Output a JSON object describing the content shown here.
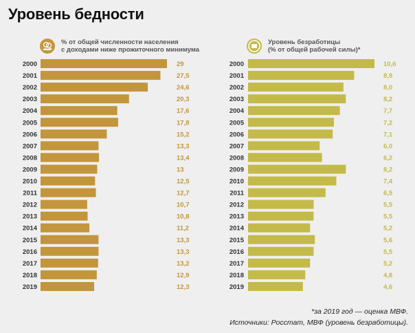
{
  "title": "Уровень бедности",
  "colors": {
    "poverty_bar": "#c3953c",
    "poverty_value": "#c3953c",
    "unemployment_bar": "#c4ba4a",
    "unemployment_value": "#c4ba4a",
    "year_label": "#333333"
  },
  "chart_data": [
    {
      "type": "bar",
      "orientation": "horizontal",
      "title": "% от общей численности населения с доходами ниже прожиточного минимума",
      "title_lines": [
        "% от общей численности населения",
        "с доходами ниже прожиточного минимума"
      ],
      "icon": "coins-hand-icon",
      "categories": [
        "2000",
        "2001",
        "2002",
        "2003",
        "2004",
        "2005",
        "2006",
        "2007",
        "2008",
        "2009",
        "2010",
        "2011",
        "2012",
        "2013",
        "2014",
        "2015",
        "2016",
        "2017",
        "2018",
        "2019"
      ],
      "values": [
        29,
        27.5,
        24.6,
        20.3,
        17.6,
        17.8,
        15.2,
        13.3,
        13.4,
        13,
        12.5,
        12.7,
        10.7,
        10.8,
        11.2,
        13.3,
        13.3,
        13.2,
        12.9,
        12.3
      ],
      "labels": [
        "29",
        "27,5",
        "24,6",
        "20,3",
        "17,6",
        "17,8",
        "15,2",
        "13,3",
        "13,4",
        "13",
        "12,5",
        "12,7",
        "10,7",
        "10,8",
        "11,2",
        "13,3",
        "13,3",
        "13,2",
        "12,9",
        "12,3"
      ],
      "xlim": [
        0,
        29
      ],
      "grid": false,
      "legend": "none"
    },
    {
      "type": "bar",
      "orientation": "horizontal",
      "title": "Уровень безработицы (% от общей рабочей силы)*",
      "title_lines": [
        "Уровень безработицы",
        "(% от общей рабочей силы)*"
      ],
      "icon": "flag-icon",
      "categories": [
        "2000",
        "2001",
        "2002",
        "2003",
        "2004",
        "2005",
        "2006",
        "2007",
        "2008",
        "2009",
        "2010",
        "2011",
        "2012",
        "2013",
        "2014",
        "2015",
        "2016",
        "2017",
        "2018",
        "2019"
      ],
      "values": [
        10.6,
        8.9,
        8.0,
        8.2,
        7.7,
        7.2,
        7.1,
        6.0,
        6.2,
        8.2,
        7.4,
        6.5,
        5.5,
        5.5,
        5.2,
        5.6,
        5.5,
        5.2,
        4.8,
        4.6
      ],
      "labels": [
        "10,6",
        "8,9",
        "8,0",
        "8,2",
        "7,7",
        "7,2",
        "7,1",
        "6,0",
        "6,2",
        "8,2",
        "7,4",
        "6,5",
        "5,5",
        "5,5",
        "5,2",
        "5,6",
        "5,5",
        "5,2",
        "4,8",
        "4,6"
      ],
      "xlim": [
        0,
        10.6
      ],
      "grid": false,
      "legend": "none"
    }
  ],
  "footnotes": [
    "*за 2019 год — оценка МВФ.",
    "Источники: Росстат, МВФ (уровень безработицы)."
  ]
}
